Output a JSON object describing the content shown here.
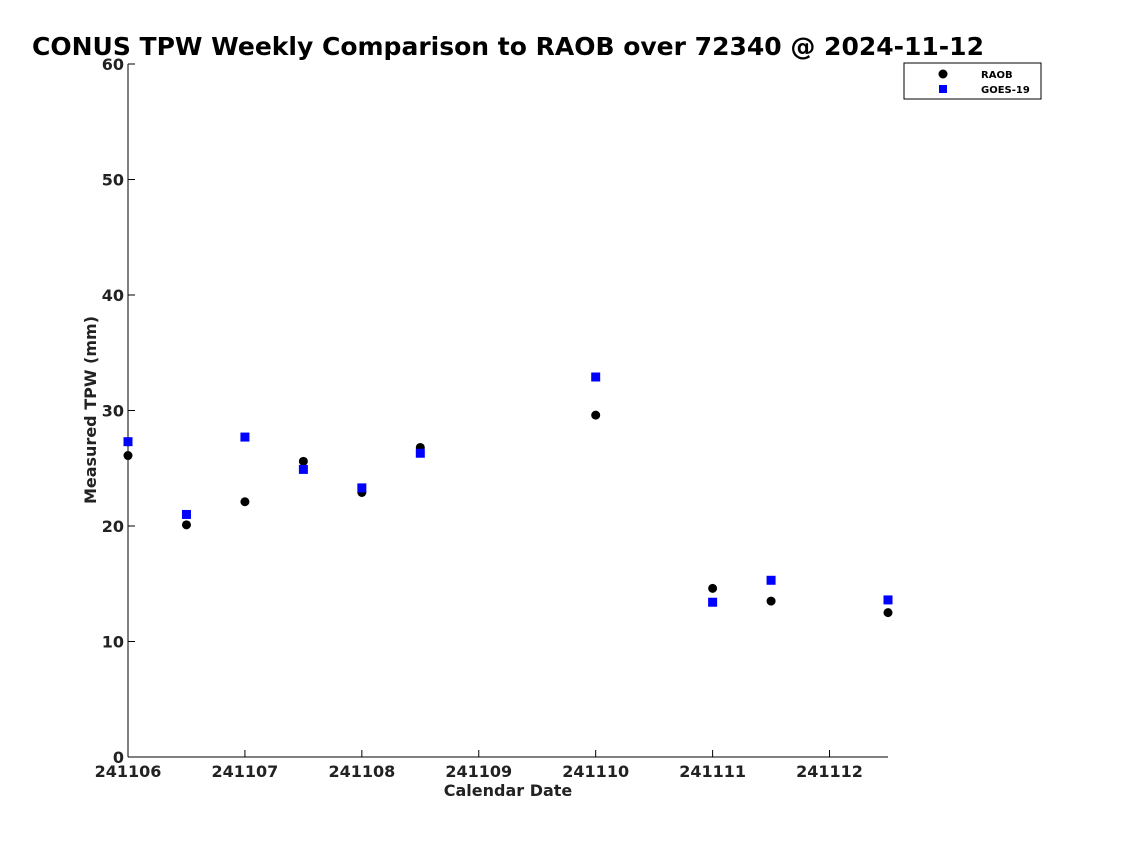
{
  "chart_data": {
    "type": "scatter",
    "title": "CONUS TPW Weekly Comparison to RAOB over 72340 @ 2024-11-12",
    "xlabel": "Calendar Date",
    "ylabel": "Measured TPW (mm)",
    "xlim": [
      241106,
      241112.5
    ],
    "ylim": [
      0,
      60
    ],
    "x_ticks": [
      241106,
      241107,
      241108,
      241109,
      241110,
      241111,
      241112
    ],
    "x_tick_labels": [
      "241106",
      "241107",
      "241108",
      "241109",
      "241110",
      "241111",
      "241112"
    ],
    "y_ticks": [
      0,
      10,
      20,
      30,
      40,
      50,
      60
    ],
    "y_tick_labels": [
      "0",
      "10",
      "20",
      "30",
      "40",
      "50",
      "60"
    ],
    "grid": false,
    "legend_position": "top-right",
    "series": [
      {
        "name": "RAOB",
        "marker": "circle",
        "color": "#000000",
        "points": [
          [
            241106.0,
            26.1
          ],
          [
            241106.5,
            20.1
          ],
          [
            241107.0,
            22.1
          ],
          [
            241107.5,
            25.6
          ],
          [
            241108.0,
            22.9
          ],
          [
            241108.5,
            26.8
          ],
          [
            241110.0,
            29.6
          ],
          [
            241111.0,
            14.6
          ],
          [
            241111.5,
            13.5
          ],
          [
            241112.5,
            12.5
          ]
        ]
      },
      {
        "name": "GOES-19",
        "marker": "square",
        "color": "#0000ff",
        "points": [
          [
            241106.0,
            27.3
          ],
          [
            241106.5,
            21.0
          ],
          [
            241107.0,
            27.7
          ],
          [
            241107.5,
            24.9
          ],
          [
            241108.0,
            23.3
          ],
          [
            241108.5,
            26.3
          ],
          [
            241110.0,
            32.9
          ],
          [
            241111.0,
            13.4
          ],
          [
            241111.5,
            15.3
          ],
          [
            241112.5,
            13.6
          ]
        ]
      }
    ]
  }
}
